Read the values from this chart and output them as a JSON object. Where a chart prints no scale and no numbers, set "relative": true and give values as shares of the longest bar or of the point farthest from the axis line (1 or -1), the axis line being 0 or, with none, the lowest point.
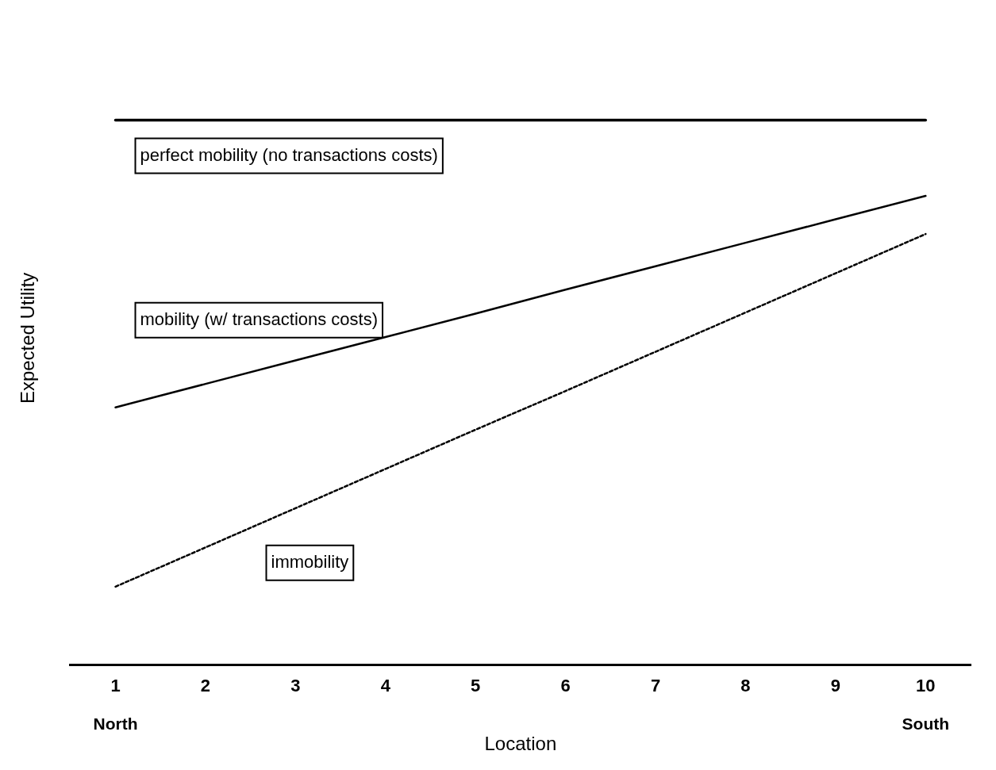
{
  "chart_data": {
    "type": "line",
    "relative": true,
    "xlabel": "Location",
    "ylabel": "Expected Utility",
    "categories": [
      "1",
      "2",
      "3",
      "4",
      "5",
      "6",
      "7",
      "8",
      "9",
      "10"
    ],
    "annotations": [
      "North",
      "South"
    ],
    "grid": false,
    "legend": false,
    "marker": "none",
    "series": [
      {
        "name": "perfect mobility (no transactions costs)",
        "color": "#000000",
        "line_style": "solid",
        "values": [
          1,
          1,
          1,
          1,
          1,
          1,
          1,
          1,
          1,
          1
        ]
      },
      {
        "name": "mobility (w/ transactions costs)",
        "color": "#000000",
        "line_style": "solid",
        "values": [
          0.473,
          0.516,
          0.559,
          0.602,
          0.645,
          0.689,
          0.732,
          0.775,
          0.818,
          0.861
        ]
      },
      {
        "name": "immobility",
        "color": "#000000",
        "line_style": "dotted",
        "values": [
          0.144,
          0.216,
          0.288,
          0.36,
          0.432,
          0.503,
          0.575,
          0.647,
          0.719,
          0.791
        ]
      }
    ]
  }
}
